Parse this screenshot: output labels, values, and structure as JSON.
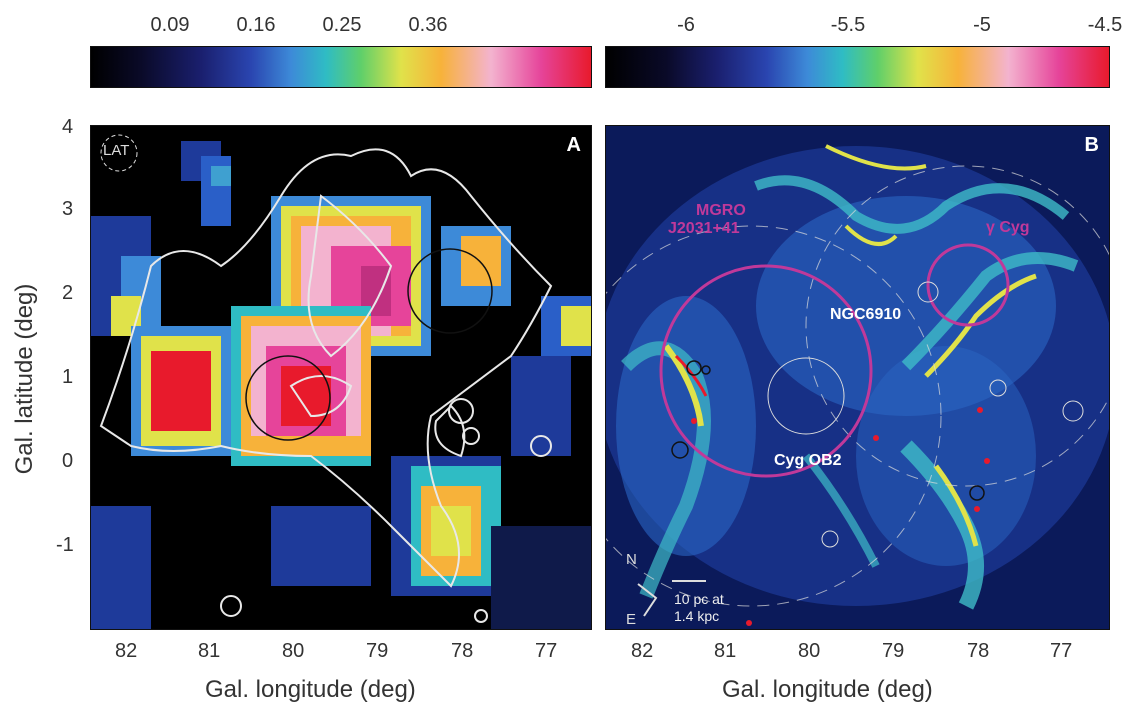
{
  "colorbar_left": {
    "ticks": [
      "0.09",
      "0.16",
      "0.25",
      "0.36"
    ]
  },
  "colorbar_right": {
    "ticks": [
      "-6",
      "-5.5",
      "-5",
      "-4.5"
    ]
  },
  "panel_a": {
    "label": "A",
    "psf_label": "LAT"
  },
  "panel_b": {
    "label": "B",
    "mgro_line1": "MGRO",
    "mgro_line2": "J2031+41",
    "gamma_cyg": "γ Cyg",
    "ngc": "NGC6910",
    "cyg_ob2": "Cyg OB2",
    "compass_n": "N",
    "compass_e": "E",
    "scale_line1": "10 pc at",
    "scale_line2": "1.4 kpc"
  },
  "axes": {
    "xlabel": "Gal. longitude (deg)",
    "ylabel": "Gal. latitude (deg)",
    "xticks": [
      "82",
      "81",
      "80",
      "79",
      "78",
      "77"
    ],
    "yticks": [
      "4",
      "3",
      "2",
      "1",
      "0",
      "-1"
    ]
  },
  "colors": {
    "magenta": "#c0399a",
    "contour": "#e8e8e8"
  }
}
